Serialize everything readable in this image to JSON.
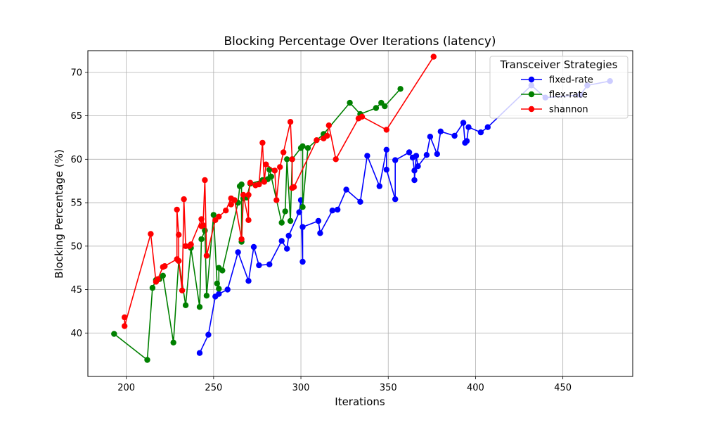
{
  "chart_data": {
    "type": "line",
    "title": "Blocking Percentage Over Iterations (latency)",
    "xlabel": "Iterations",
    "ylabel": "Blocking Percentage (%)",
    "xlim": [
      178,
      490
    ],
    "ylim": [
      35,
      72.5
    ],
    "xticks": [
      200,
      250,
      300,
      350,
      400,
      450
    ],
    "yticks": [
      40,
      45,
      50,
      55,
      60,
      65,
      70
    ],
    "grid": true,
    "legend": {
      "title": "Transceiver Strategies",
      "placement": "top-right"
    },
    "series": [
      {
        "name": "fixed-rate",
        "color": "#0000ff",
        "points": [
          [
            242,
            37.7
          ],
          [
            247,
            39.8
          ],
          [
            251,
            44.2
          ],
          [
            253,
            44.5
          ],
          [
            258,
            45.0
          ],
          [
            264,
            49.3
          ],
          [
            270,
            46.0
          ],
          [
            273,
            49.9
          ],
          [
            276,
            47.8
          ],
          [
            282,
            47.9
          ],
          [
            289,
            50.6
          ],
          [
            292,
            49.7
          ],
          [
            293,
            51.2
          ],
          [
            299,
            53.9
          ],
          [
            300,
            55.3
          ],
          [
            301,
            48.2
          ],
          [
            301,
            52.2
          ],
          [
            310,
            52.9
          ],
          [
            311,
            51.5
          ],
          [
            318,
            54.1
          ],
          [
            321,
            54.2
          ],
          [
            326,
            56.5
          ],
          [
            334,
            55.1
          ],
          [
            338,
            60.4
          ],
          [
            345,
            56.9
          ],
          [
            349,
            61.1
          ],
          [
            349,
            58.8
          ],
          [
            354,
            55.4
          ],
          [
            354,
            59.9
          ],
          [
            362,
            60.8
          ],
          [
            364,
            60.2
          ],
          [
            365,
            58.7
          ],
          [
            365,
            57.6
          ],
          [
            366,
            60.4
          ],
          [
            367,
            59.2
          ],
          [
            372,
            60.5
          ],
          [
            374,
            62.6
          ],
          [
            378,
            60.6
          ],
          [
            380,
            63.2
          ],
          [
            388,
            62.7
          ],
          [
            393,
            64.2
          ],
          [
            394,
            61.9
          ],
          [
            395,
            62.1
          ],
          [
            396,
            63.7
          ],
          [
            403,
            63.1
          ],
          [
            407,
            63.7
          ],
          [
            432,
            68.5
          ],
          [
            440,
            67.1
          ],
          [
            460,
            67.4
          ],
          [
            464,
            68.5
          ],
          [
            477,
            69.0
          ]
        ]
      },
      {
        "name": "flex-rate",
        "color": "#008000",
        "points": [
          [
            193,
            39.9
          ],
          [
            212,
            36.9
          ],
          [
            215,
            45.2
          ],
          [
            217,
            46.1
          ],
          [
            219,
            46.2
          ],
          [
            221,
            46.6
          ],
          [
            227,
            38.9
          ],
          [
            230,
            48.3
          ],
          [
            234,
            43.2
          ],
          [
            237,
            49.8
          ],
          [
            242,
            43.0
          ],
          [
            243,
            50.8
          ],
          [
            245,
            51.8
          ],
          [
            246,
            44.3
          ],
          [
            250,
            53.6
          ],
          [
            252,
            45.7
          ],
          [
            253,
            45.1
          ],
          [
            253,
            47.5
          ],
          [
            255,
            47.2
          ],
          [
            264,
            55.0
          ],
          [
            265,
            56.9
          ],
          [
            266,
            57.1
          ],
          [
            266,
            50.5
          ],
          [
            267,
            55.5
          ],
          [
            269,
            55.6
          ],
          [
            271,
            57.2
          ],
          [
            278,
            57.6
          ],
          [
            281,
            57.7
          ],
          [
            282,
            58.8
          ],
          [
            283,
            58.0
          ],
          [
            289,
            52.7
          ],
          [
            291,
            54.0
          ],
          [
            292,
            60.0
          ],
          [
            294,
            52.9
          ],
          [
            295,
            60.0
          ],
          [
            300,
            61.3
          ],
          [
            301,
            61.5
          ],
          [
            301,
            54.5
          ],
          [
            304,
            61.3
          ],
          [
            313,
            62.9
          ],
          [
            328,
            66.5
          ],
          [
            334,
            65.2
          ],
          [
            343,
            65.9
          ],
          [
            346,
            66.5
          ],
          [
            348,
            66.1
          ],
          [
            357,
            68.1
          ]
        ]
      },
      {
        "name": "shannon",
        "color": "#ff0000",
        "points": [
          [
            199,
            41.8
          ],
          [
            199,
            40.8
          ],
          [
            214,
            51.4
          ],
          [
            217,
            45.9
          ],
          [
            218,
            46.2
          ],
          [
            221,
            47.6
          ],
          [
            222,
            47.7
          ],
          [
            229,
            48.5
          ],
          [
            229,
            54.2
          ],
          [
            230,
            51.3
          ],
          [
            230,
            48.3
          ],
          [
            232,
            44.9
          ],
          [
            233,
            55.4
          ],
          [
            234,
            50.0
          ],
          [
            236,
            50.0
          ],
          [
            237,
            50.2
          ],
          [
            243,
            53.1
          ],
          [
            243,
            52.3
          ],
          [
            244,
            52.4
          ],
          [
            245,
            57.6
          ],
          [
            246,
            48.9
          ],
          [
            251,
            53.0
          ],
          [
            253,
            53.4
          ],
          [
            257,
            54.1
          ],
          [
            260,
            55.5
          ],
          [
            260,
            54.8
          ],
          [
            262,
            55.3
          ],
          [
            266,
            50.8
          ],
          [
            267,
            55.9
          ],
          [
            270,
            53.0
          ],
          [
            270,
            55.9
          ],
          [
            271,
            57.3
          ],
          [
            274,
            57.0
          ],
          [
            276,
            57.1
          ],
          [
            278,
            61.9
          ],
          [
            279,
            57.4
          ],
          [
            280,
            59.4
          ],
          [
            285,
            58.7
          ],
          [
            286,
            55.3
          ],
          [
            288,
            59.1
          ],
          [
            290,
            60.8
          ],
          [
            294,
            64.3
          ],
          [
            295,
            60.0
          ],
          [
            295,
            56.7
          ],
          [
            296,
            56.8
          ],
          [
            309,
            62.2
          ],
          [
            313,
            62.4
          ],
          [
            315,
            62.7
          ],
          [
            316,
            63.9
          ],
          [
            320,
            60.0
          ],
          [
            333,
            64.7
          ],
          [
            335,
            64.9
          ],
          [
            349,
            63.4
          ],
          [
            376,
            71.8
          ]
        ]
      }
    ]
  }
}
